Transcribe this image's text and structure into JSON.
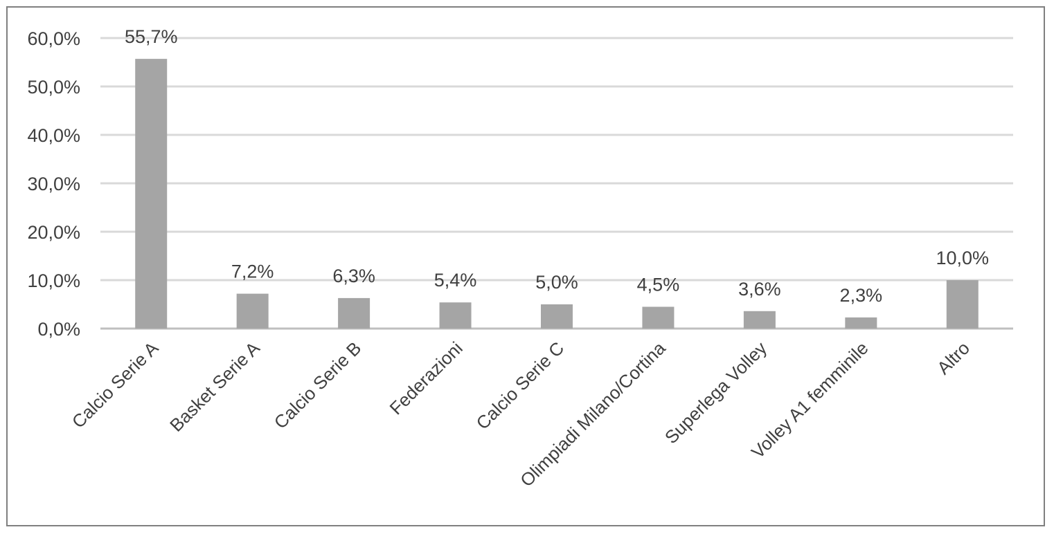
{
  "chart_data": {
    "type": "bar",
    "title": "",
    "xlabel": "",
    "ylabel": "",
    "categories": [
      "Calcio Serie A",
      "Basket Serie A",
      "Calcio Serie B",
      "Federazioni",
      "Calcio Serie C",
      "Olimpiadi Milano/Cortina",
      "Superlega Volley",
      "Volley A1 femminile",
      "Altro"
    ],
    "values": [
      55.7,
      7.2,
      6.3,
      5.4,
      5.0,
      4.5,
      3.6,
      2.3,
      10.0
    ],
    "data_labels": [
      "55,7%",
      "7,2%",
      "6,3%",
      "5,4%",
      "5,0%",
      "4,5%",
      "3,6%",
      "2,3%",
      "10,0%"
    ],
    "yticks": [
      0,
      10,
      20,
      30,
      40,
      50,
      60
    ],
    "ytick_labels": [
      "0,0%",
      "10,0%",
      "20,0%",
      "30,0%",
      "40,0%",
      "50,0%",
      "60,0%"
    ],
    "ylim": [
      0,
      60
    ],
    "grid": true,
    "legend": "none",
    "colors": {
      "bar": "#a5a5a5",
      "grid": "#d9d9d9",
      "axis": "#bfbfbf",
      "text": "#404040",
      "border": "#7f7f7f"
    }
  }
}
